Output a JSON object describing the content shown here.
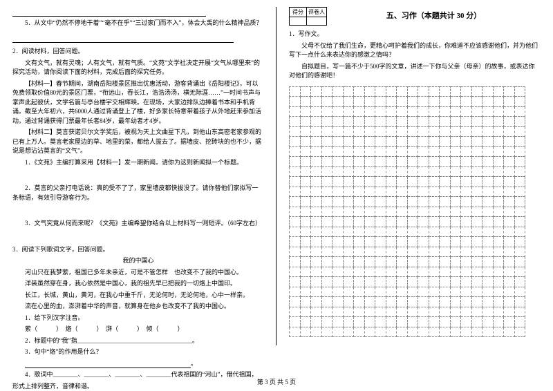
{
  "left": {
    "blank_line": "",
    "q5": "5．从文中“仍然不停地干着”“毫不在乎”“三过家门而不入”，体会大禹的什么精神品质？",
    "section2_intro": "2．阅读材料，回答问题。",
    "para1": "文有文气，就有灵魂；人有文气，就有气质。“文苑”文学社决定开展“文气从哪里来”的探究活动，请你阅读下面的材料，完成后面的探究任务。",
    "mat1": "【材料一】春节期间，湖南岳阳楼景区推出优惠活动，游客背诵出《岳阳楼记》，可以免费领取价值80元的景区门票，“衔远山，吞长江，浩浩汤汤，横无际涯……”一时间书声与掌声此起彼伏，文学名篇与亭台楼宇交相辉映。在现场，大家边排队边捧着书本和手机背诵。截至大年初六，共6000人通过背诵登上了楼，好多家长特意带着孩子从外地赶来参加活动。通过背诵获得门票最年长者84岁，最年幼者才4岁。",
    "mat2": "【材料二】莫言获诺贝尔文学奖后，被视为天上文曲星下凡，到他山东高密老家参观的已有上万人。莫言老家屋边的草、地里的菜，都给人拔去了。据墙皮、挖砖块的也不少，据说是想沾沾莫言的“文气”。",
    "q2_1": "1．《文苑》主编打算采用【材料一】发一期新闻。请你为这则新闻拟一个标题。",
    "q2_2": "2．莫言的父亲打电话说：真的受不了了，家里墙皮都快拔没了。请你替他们家拟写一条标语，有效引导游客行为。",
    "q2_3": "3．文气究竟从何而来呢？《文苑》主编希望你结合以上材料写一则短评。（60字左右）",
    "section3_intro": "3．阅读下列歌词文字，回答问题。",
    "title_song": "我的中国心",
    "lyric1": "河山只在我梦萦，祖国已多年未亲近，可是不管怎样　也改变不了我的中国心。",
    "lyric2": "洋装虽然穿在身，我心依然是中国心，我的祖先早已把我的一切烙上中国印。",
    "lyric3": "长江，长城，黄山，黄河，在我心中重千斤，无论何时，无论何地，心中一样亲。",
    "lyric4": "流在心里的血，澎湃着中华的声音，就算身在他乡也改变不了我的中国心。",
    "q3_1": "1．给下列汉字注音。",
    "q3_1_line": "萦（　　　）　烙（　　　）　湃（　　　）　倾（　　　）",
    "q3_2": "2．标题中的“我”指_____________________________________。",
    "q3_3": "3．句中“烙”的作用是什么？",
    "q3_4a": "4．歌词中________、________、________、________代表祖国的“河山”，借代祖国，",
    "q3_4b": "形式上排列整齐，音律和谐。"
  },
  "right": {
    "score1": "得分",
    "score2": "评卷人",
    "section_title": "五、习作（本题共计 30 分）",
    "q1": "1．写作文。",
    "p1": "父母不仅给了我们生命，更精心呵护着我们的成长，你难道不应该感谢他们，并为他们写下一点什么来表达你的感激之情吗？",
    "p2": "自拟题目，写一篇不少于500字的文章，讲述一下你与父亲（母亲）的故事，或表达你对他们的感谢吧！"
  },
  "pagenum": "第 3 页 共 5 页",
  "style": {
    "grid_rows": 25,
    "grid_cols": 22
  }
}
